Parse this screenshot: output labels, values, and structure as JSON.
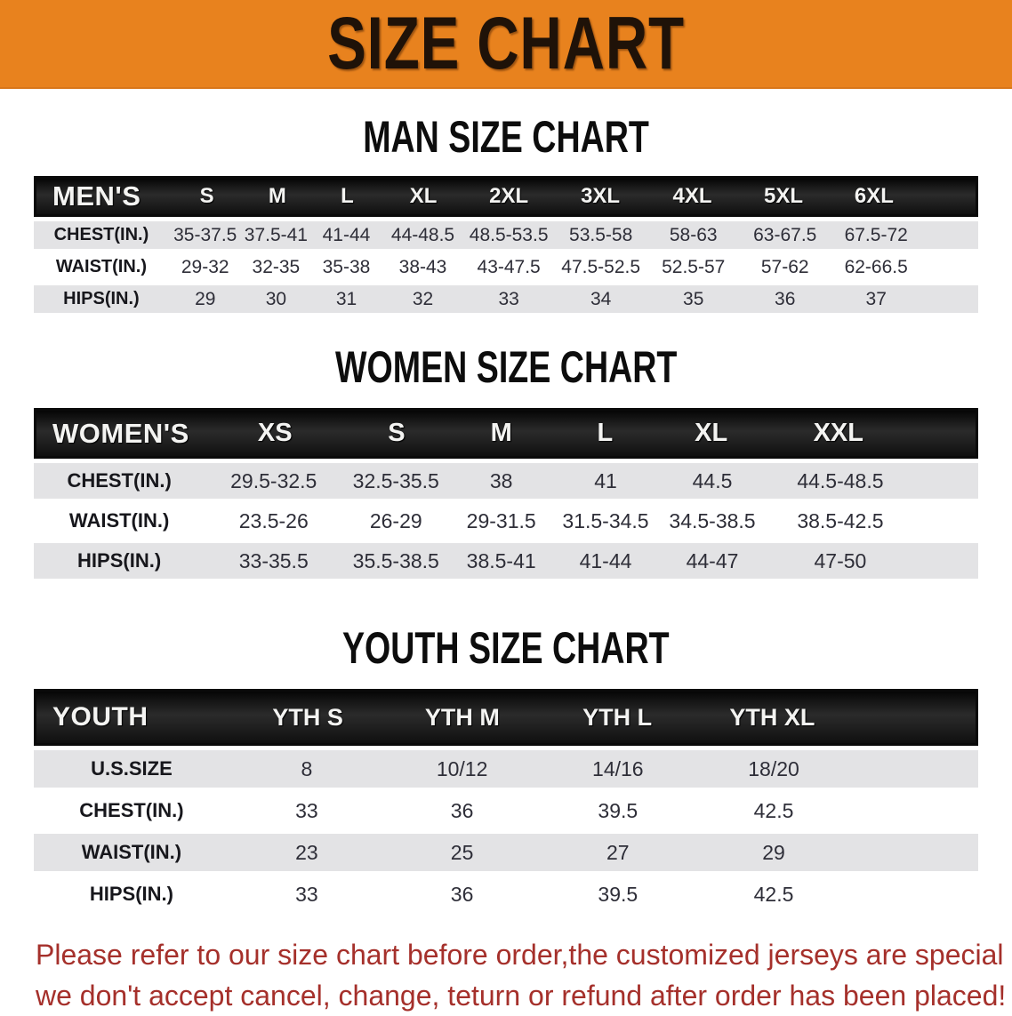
{
  "colors": {
    "banner_bg": "#E8821E",
    "header_band": "#111111",
    "stripe_gray": "#e3e3e5",
    "disclaimer_red": "#A5302B"
  },
  "banner": {
    "title": "SIZE CHART"
  },
  "sections": [
    {
      "heading": "MAN SIZE CHART",
      "table": {
        "header_label": "MEN'S",
        "columns": [
          "S",
          "M",
          "L",
          "XL",
          "2XL",
          "3XL",
          "4XL",
          "5XL",
          "6XL"
        ],
        "rows": [
          {
            "label": "CHEST(IN.)",
            "values": [
              "35-37.5",
              "37.5-41",
              "41-44",
              "44-48.5",
              "48.5-53.5",
              "53.5-58",
              "58-63",
              "63-67.5",
              "67.5-72"
            ]
          },
          {
            "label": "WAIST(IN.)",
            "values": [
              "29-32",
              "32-35",
              "35-38",
              "38-43",
              "43-47.5",
              "47.5-52.5",
              "52.5-57",
              "57-62",
              "62-66.5"
            ]
          },
          {
            "label": "HIPS(IN.)",
            "values": [
              "29",
              "30",
              "31",
              "32",
              "33",
              "34",
              "35",
              "36",
              "37"
            ]
          }
        ]
      }
    },
    {
      "heading": "WOMEN SIZE CHART",
      "table": {
        "header_label": "WOMEN'S",
        "columns": [
          "XS",
          "S",
          "M",
          "L",
          "XL",
          "XXL"
        ],
        "rows": [
          {
            "label": "CHEST(IN.)",
            "values": [
              "29.5-32.5",
              "32.5-35.5",
              "38",
              "41",
              "44.5",
              "44.5-48.5"
            ]
          },
          {
            "label": "WAIST(IN.)",
            "values": [
              "23.5-26",
              "26-29",
              "29-31.5",
              "31.5-34.5",
              "34.5-38.5",
              "38.5-42.5"
            ]
          },
          {
            "label": "HIPS(IN.)",
            "values": [
              "33-35.5",
              "35.5-38.5",
              "38.5-41",
              "41-44",
              "44-47",
              "47-50"
            ]
          }
        ]
      }
    },
    {
      "heading": "YOUTH SIZE CHART",
      "table": {
        "header_label": "YOUTH",
        "columns": [
          "YTH S",
          "YTH M",
          "YTH L",
          "YTH XL"
        ],
        "rows": [
          {
            "label": "U.S.SIZE",
            "values": [
              "8",
              "10/12",
              "14/16",
              "18/20"
            ]
          },
          {
            "label": "CHEST(IN.)",
            "values": [
              "33",
              "36",
              "39.5",
              "42.5"
            ]
          },
          {
            "label": "WAIST(IN.)",
            "values": [
              "23",
              "25",
              "27",
              "29"
            ]
          },
          {
            "label": "HIPS(IN.)",
            "values": [
              "33",
              "36",
              "39.5",
              "42.5"
            ]
          }
        ]
      }
    }
  ],
  "disclaimer": {
    "line1": "Please refer to our size chart before order,the customized jerseys are special products,",
    "line2": "we don't accept cancel, change, teturn or refund after order has been placed!"
  }
}
